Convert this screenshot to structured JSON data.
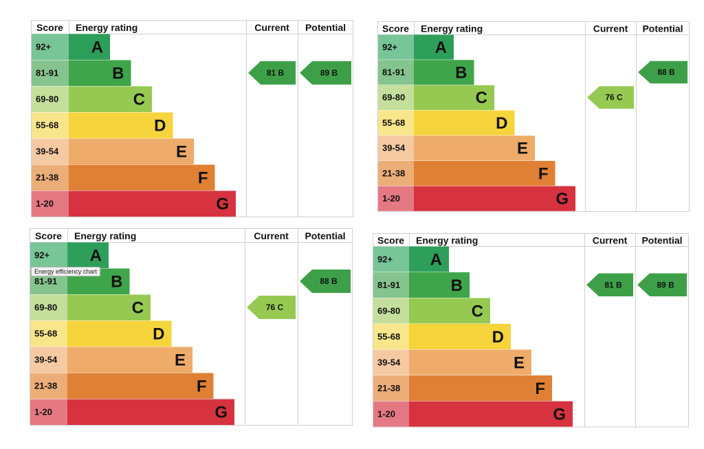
{
  "headers": {
    "score": "Score",
    "rating": "Energy rating",
    "current": "Current",
    "potential": "Potential"
  },
  "tooltip": "Energy efficiency chart",
  "bands": [
    {
      "letter": "A",
      "range": "92+",
      "color": "#2e9f5a",
      "score_bg": "#78c598"
    },
    {
      "letter": "B",
      "range": "81-91",
      "color": "#3fa54a",
      "score_bg": "#86c48f"
    },
    {
      "letter": "C",
      "range": "69-80",
      "color": "#96c951",
      "score_bg": "#c4df9c"
    },
    {
      "letter": "D",
      "range": "55-68",
      "color": "#f5d43c",
      "score_bg": "#f9e58a"
    },
    {
      "letter": "E",
      "range": "39-54",
      "color": "#eeab6a",
      "score_bg": "#f5c9a2"
    },
    {
      "letter": "F",
      "range": "21-38",
      "color": "#e08034",
      "score_bg": "#ebae78"
    },
    {
      "letter": "G",
      "range": "1-20",
      "color": "#d73240",
      "score_bg": "#e57983"
    }
  ],
  "chart_data": [
    {
      "type": "bar",
      "title": "",
      "categories": [
        "A",
        "B",
        "C",
        "D",
        "E",
        "F",
        "G"
      ],
      "score_ranges": [
        "92+",
        "81-91",
        "69-80",
        "55-68",
        "39-54",
        "21-38",
        "1-20"
      ],
      "current": {
        "value": 81,
        "band": "B",
        "label": "81 B"
      },
      "potential": {
        "value": 89,
        "band": "B",
        "label": "89 B"
      }
    },
    {
      "type": "bar",
      "title": "",
      "categories": [
        "A",
        "B",
        "C",
        "D",
        "E",
        "F",
        "G"
      ],
      "score_ranges": [
        "92+",
        "81-91",
        "69-80",
        "55-68",
        "39-54",
        "21-38",
        "1-20"
      ],
      "current": {
        "value": 76,
        "band": "C",
        "label": "76 C"
      },
      "potential": {
        "value": 88,
        "band": "B",
        "label": "88 B"
      }
    },
    {
      "type": "bar",
      "title": "",
      "categories": [
        "A",
        "B",
        "C",
        "D",
        "E",
        "F",
        "G"
      ],
      "score_ranges": [
        "92+",
        "81-91",
        "69-80",
        "55-68",
        "39-54",
        "21-38",
        "1-20"
      ],
      "current": {
        "value": 76,
        "band": "C",
        "label": "76 C"
      },
      "potential": {
        "value": 88,
        "band": "B",
        "label": "88 B"
      }
    },
    {
      "type": "bar",
      "title": "",
      "categories": [
        "A",
        "B",
        "C",
        "D",
        "E",
        "F",
        "G"
      ],
      "score_ranges": [
        "92+",
        "81-91",
        "69-80",
        "55-68",
        "39-54",
        "21-38",
        "1-20"
      ],
      "current": {
        "value": 81,
        "band": "B",
        "label": "81 B"
      },
      "potential": {
        "value": 89,
        "band": "B",
        "label": "89 B"
      }
    }
  ]
}
